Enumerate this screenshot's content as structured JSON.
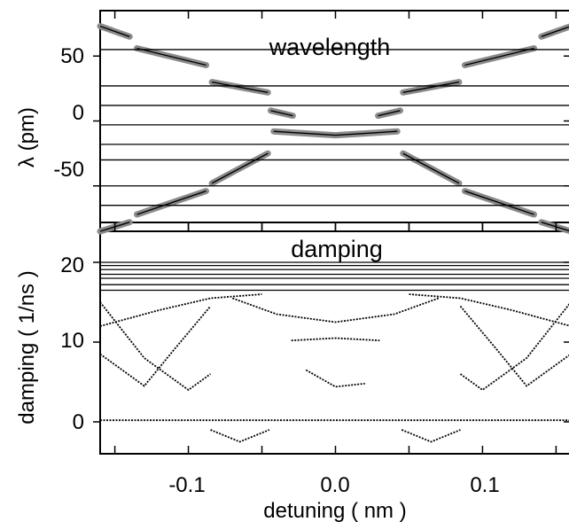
{
  "chart_data": [
    {
      "type": "line",
      "title": "wavelength",
      "ylabel": "λ (pm)",
      "xlabel": "",
      "xlim": [
        -0.16,
        0.16
      ],
      "ylim": [
        -85,
        85
      ],
      "yticks": [
        50,
        0,
        -50
      ],
      "ytick_labels": [
        "50",
        "0",
        "-50"
      ],
      "xticks": [
        -0.15,
        -0.1,
        -0.05,
        0.0,
        0.05,
        0.1,
        0.15
      ],
      "xtick_labels": [],
      "grid": false,
      "series": [
        {
          "role": "highlighted branch (thick gray)",
          "color": "#8a8a8a",
          "segments": [
            [
              [
                -0.16,
                73
              ],
              [
                -0.14,
                65
              ]
            ],
            [
              [
                -0.135,
                56
              ],
              [
                -0.088,
                43
              ]
            ],
            [
              [
                -0.084,
                30
              ],
              [
                -0.046,
                22
              ]
            ],
            [
              [
                -0.044,
                8
              ],
              [
                -0.029,
                4
              ]
            ],
            [
              [
                -0.042,
                -8
              ],
              [
                -0.028,
                -9
              ],
              [
                0.0,
                -11
              ],
              [
                0.028,
                -9
              ],
              [
                0.042,
                -8
              ]
            ],
            [
              [
                0.029,
                4
              ],
              [
                0.044,
                8
              ]
            ],
            [
              [
                0.046,
                22
              ],
              [
                0.084,
                30
              ]
            ],
            [
              [
                0.088,
                43
              ],
              [
                0.135,
                56
              ]
            ],
            [
              [
                0.14,
                65
              ],
              [
                0.16,
                73
              ]
            ],
            [
              [
                -0.046,
                -25
              ],
              [
                -0.084,
                -48
              ]
            ],
            [
              [
                -0.088,
                -54
              ],
              [
                -0.135,
                -72
              ]
            ],
            [
              [
                -0.14,
                -78
              ],
              [
                -0.16,
                -85
              ]
            ],
            [
              [
                0.046,
                -25
              ],
              [
                0.084,
                -48
              ]
            ],
            [
              [
                0.088,
                -54
              ],
              [
                0.135,
                -72
              ]
            ],
            [
              [
                0.14,
                -78
              ],
              [
                0.16,
                -85
              ]
            ]
          ]
        },
        {
          "role": "mode lines (thin black)",
          "color": "#000000",
          "levels": [
            55,
            27,
            12,
            -3,
            -18,
            -30,
            -50,
            -65
          ]
        }
      ]
    },
    {
      "type": "scatter",
      "title": "damping",
      "ylabel": "damping ( 1/ns )",
      "xlabel": "detuning ( nm )",
      "xlim": [
        -0.16,
        0.16
      ],
      "ylim": [
        -4,
        25
      ],
      "yticks": [
        20,
        10,
        0
      ],
      "ytick_labels": [
        "20",
        "10",
        "0"
      ],
      "xticks": [
        -0.15,
        -0.1,
        -0.05,
        0.0,
        0.05,
        0.1,
        0.15
      ],
      "xtick_labels": [
        "",
        "-0.1",
        "",
        "0.0",
        "",
        "0.1",
        ""
      ],
      "grid": false,
      "series": [
        {
          "role": "undamped modes",
          "color": "#000000",
          "levels": [
            20.0,
            19.6,
            19.1,
            18.5,
            18.0,
            17.2,
            16.5
          ]
        },
        {
          "role": "crossing branches",
          "color": "#000000",
          "curves": [
            [
              [
                -0.16,
                15
              ],
              [
                -0.13,
                8
              ],
              [
                -0.1,
                4
              ],
              [
                -0.085,
                6
              ]
            ],
            [
              [
                -0.16,
                8.5
              ],
              [
                -0.13,
                4.5
              ],
              [
                -0.11,
                9
              ],
              [
                -0.085,
                14.5
              ]
            ],
            [
              [
                -0.16,
                12
              ],
              [
                -0.12,
                14
              ],
              [
                -0.085,
                15.5
              ],
              [
                -0.05,
                16
              ]
            ],
            [
              [
                -0.07,
                15.5
              ],
              [
                -0.04,
                13.5
              ],
              [
                0.0,
                12.5
              ],
              [
                0.04,
                13.5
              ],
              [
                0.07,
                15.5
              ]
            ],
            [
              [
                -0.03,
                10.2
              ],
              [
                0.0,
                10.5
              ],
              [
                0.03,
                10.2
              ]
            ],
            [
              [
                -0.02,
                6.5
              ],
              [
                0.0,
                4.4
              ],
              [
                0.02,
                4.8
              ]
            ],
            [
              [
                0.085,
                6
              ],
              [
                0.1,
                4
              ],
              [
                0.13,
                8
              ],
              [
                0.16,
                15
              ]
            ],
            [
              [
                0.085,
                14.5
              ],
              [
                0.11,
                9
              ],
              [
                0.13,
                4.5
              ],
              [
                0.16,
                8.5
              ]
            ],
            [
              [
                0.05,
                16
              ],
              [
                0.085,
                15.5
              ],
              [
                0.12,
                14
              ],
              [
                0.16,
                12
              ]
            ],
            [
              [
                -0.085,
                -1
              ],
              [
                -0.065,
                -2.5
              ],
              [
                -0.045,
                -1
              ]
            ],
            [
              [
                0.045,
                -1
              ],
              [
                0.065,
                -2.5
              ],
              [
                0.085,
                -1
              ]
            ],
            [
              [
                -0.16,
                0.2
              ],
              [
                0.16,
                0.2
              ]
            ]
          ]
        }
      ]
    }
  ]
}
